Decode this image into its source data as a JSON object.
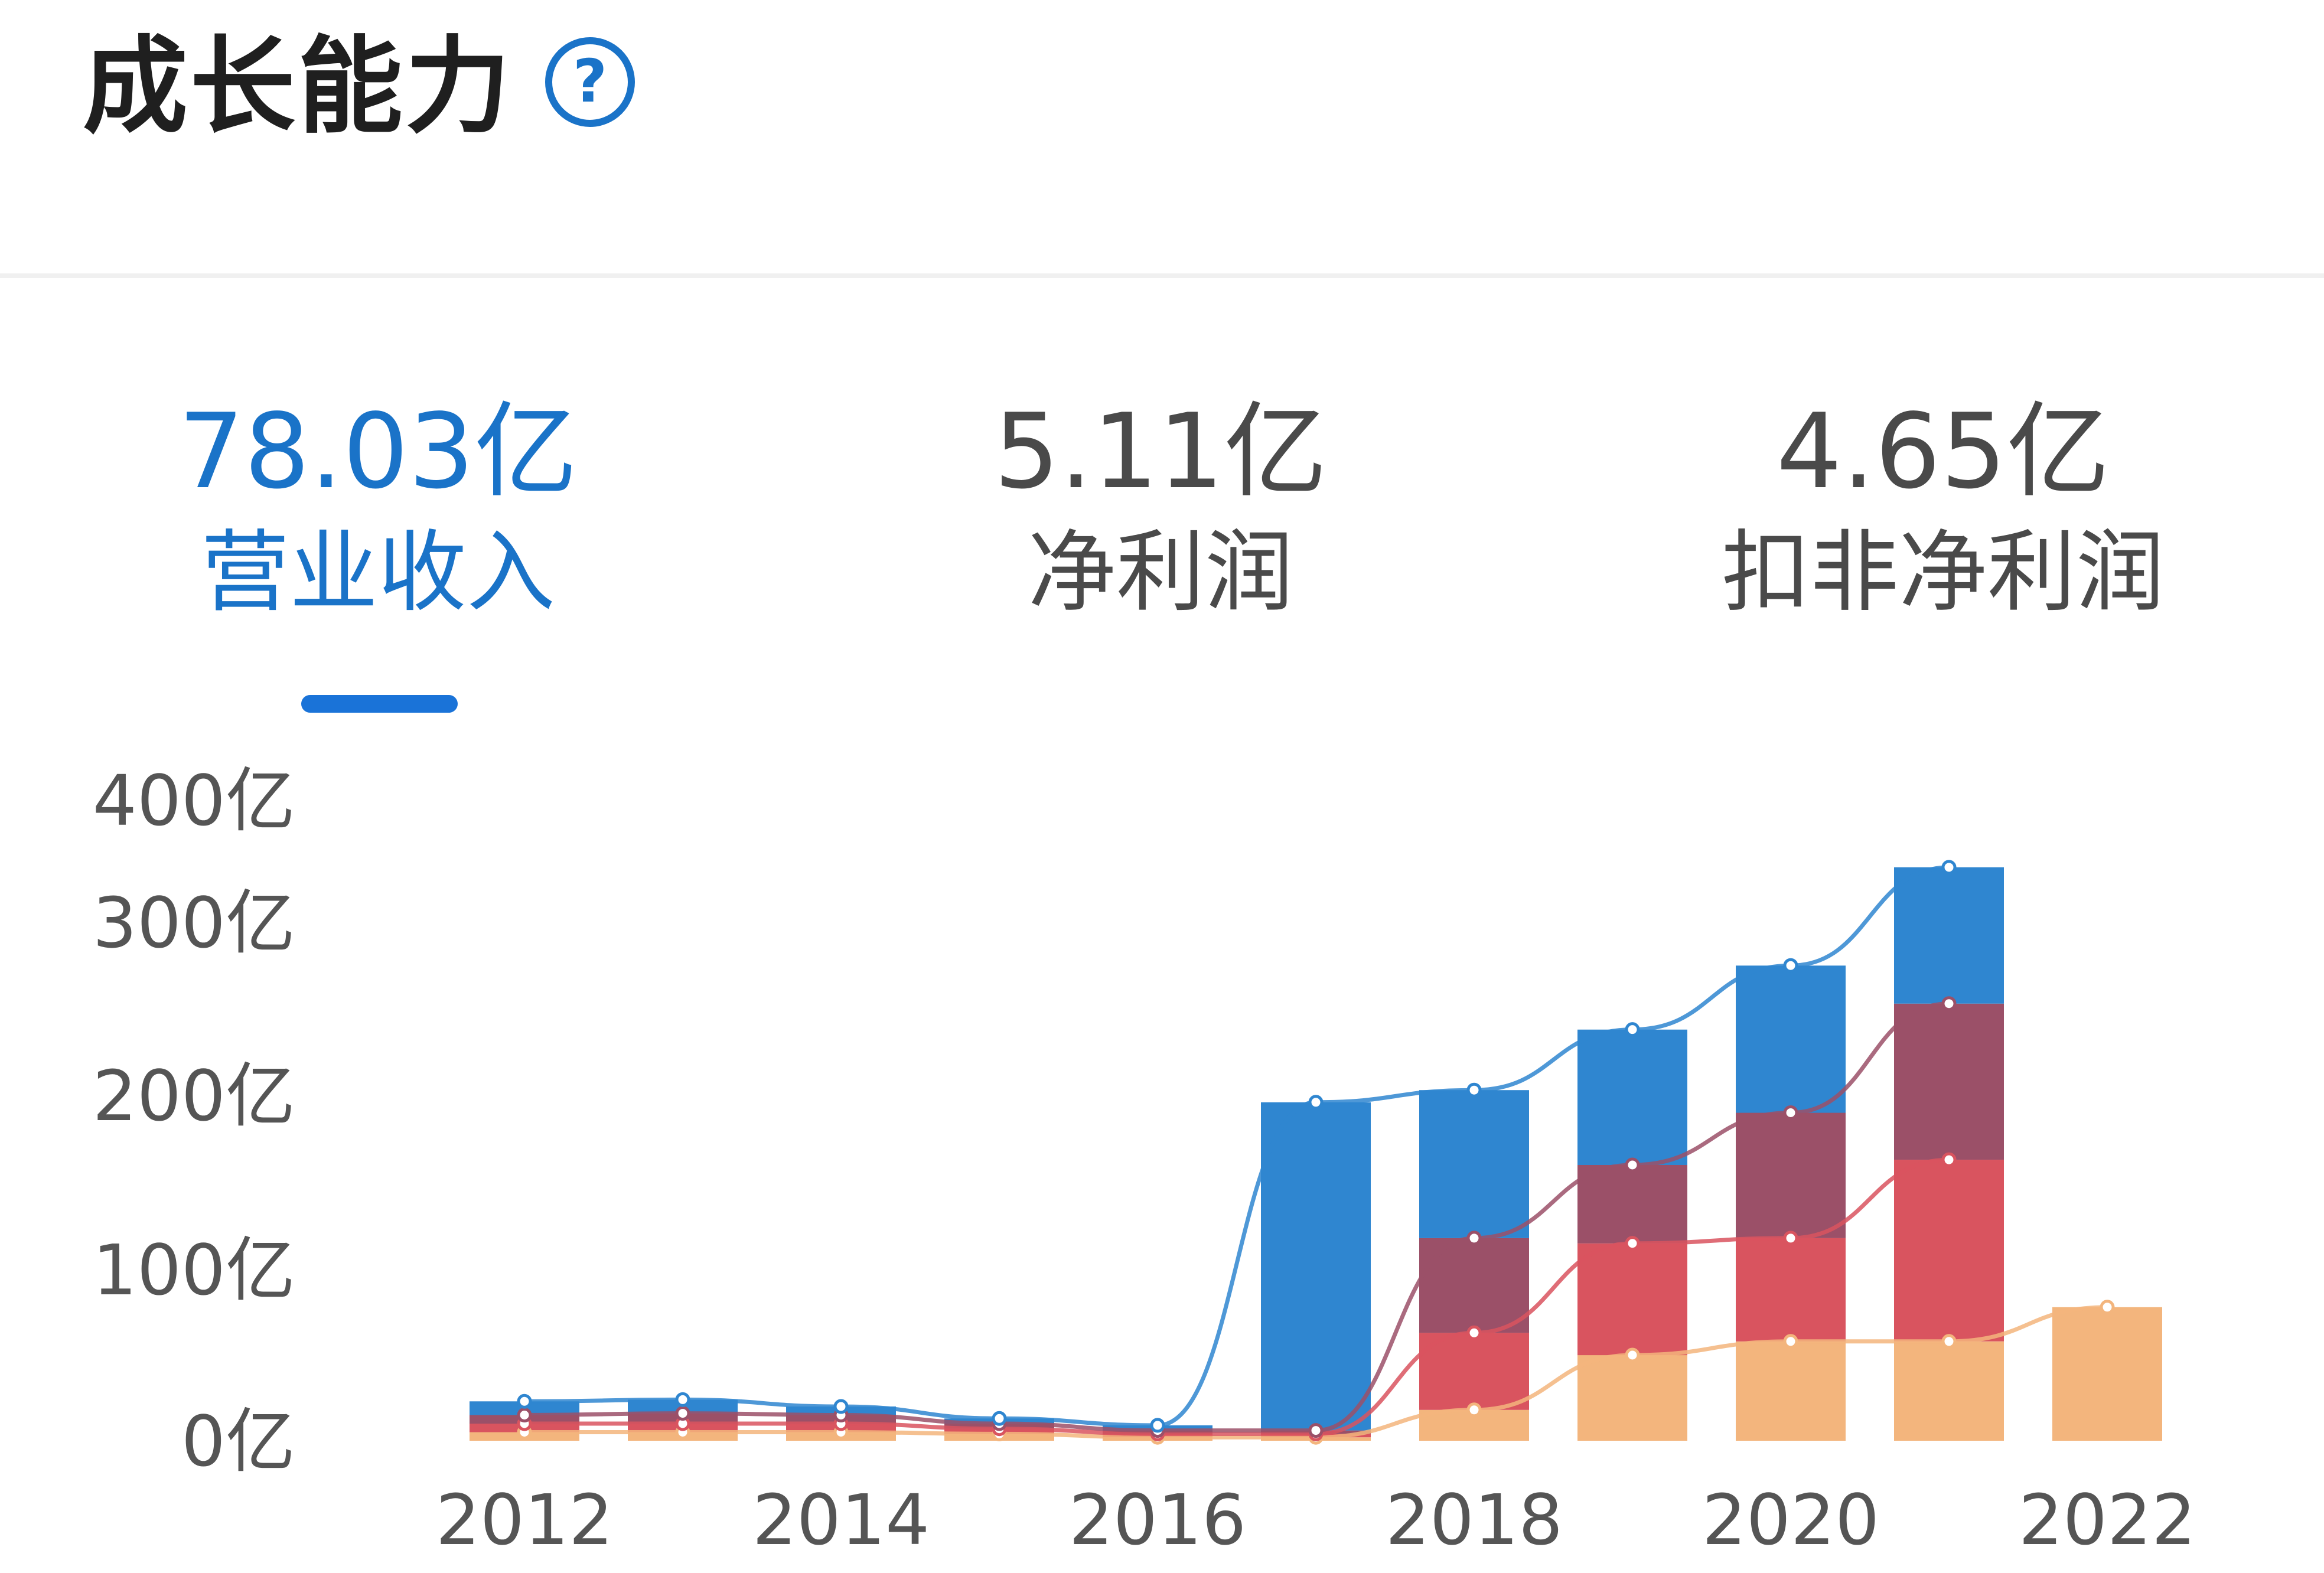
{
  "header": {
    "title": "成长能力",
    "help_icon": "question-circle-icon"
  },
  "metrics": [
    {
      "value": "78.03亿",
      "label": "营业收入",
      "active": true
    },
    {
      "value": "5.11亿",
      "label": "净利润",
      "active": false
    },
    {
      "value": "4.65亿",
      "label": "扣非净利润",
      "active": false
    }
  ],
  "colors": {
    "accent": "#1a73d8",
    "blue": "#2f86d0",
    "purple": "#9b5068",
    "red": "#d9545f",
    "orange": "#f3b57d"
  },
  "chart_data": {
    "type": "bar",
    "stacked": true,
    "with_lines": true,
    "x": [
      2012,
      2013,
      2014,
      2015,
      2016,
      2017,
      2018,
      2019,
      2020,
      2021,
      2022
    ],
    "x_tick_labels": [
      "2012",
      "2014",
      "2016",
      "2018",
      "2020",
      "2022"
    ],
    "y_tick_labels": [
      "0亿",
      "100亿",
      "200亿",
      "300亿",
      "400亿"
    ],
    "ylim": [
      0,
      400
    ],
    "series": [
      {
        "color": "#f3b57d",
        "values": [
          5,
          5,
          5,
          4,
          2,
          2,
          18,
          50,
          58,
          58,
          78
        ]
      },
      {
        "color": "#d9545f",
        "values": [
          5,
          5,
          5,
          3,
          2,
          2,
          45,
          65,
          60,
          105,
          0
        ]
      },
      {
        "color": "#9b5068",
        "values": [
          5,
          6,
          5,
          3,
          2,
          2,
          55,
          45,
          72,
          90,
          0
        ]
      },
      {
        "color": "#2f86d0",
        "values": [
          8,
          8,
          5,
          3,
          3,
          190,
          85,
          78,
          85,
          92,
          0
        ]
      }
    ]
  }
}
